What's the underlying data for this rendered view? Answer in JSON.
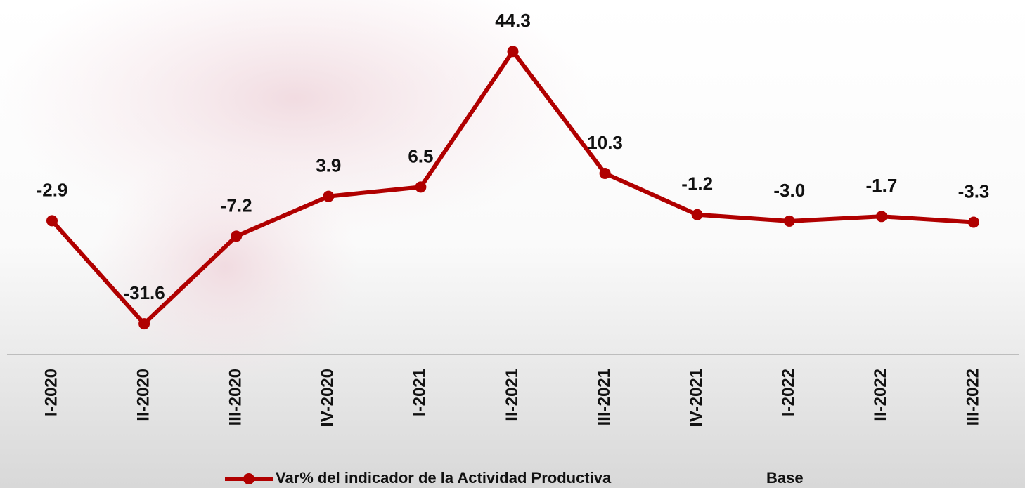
{
  "chart_data": {
    "type": "line",
    "categories": [
      "I-2020",
      "II-2020",
      "III-2020",
      "IV-2020",
      "I-2021",
      "II-2021",
      "III-2021",
      "IV-2021",
      "I-2022",
      "II-2022",
      "III-2022"
    ],
    "series": [
      {
        "name": "Var% del indicador de la Actividad Productiva",
        "color": "#b00000",
        "values": [
          -2.9,
          -31.6,
          -7.2,
          3.9,
          6.5,
          44.3,
          10.3,
          -1.2,
          -3.0,
          -1.7,
          -3.3
        ],
        "value_labels": [
          "-2.9",
          "-31.6",
          "-7.2",
          "3.9",
          "6.5",
          "44.3",
          "10.3",
          "-1.2",
          "-3.0",
          "-1.7",
          "-3.3"
        ]
      },
      {
        "name": "Base",
        "color": "#ffffff"
      }
    ],
    "ylim": [
      -40,
      60
    ]
  }
}
